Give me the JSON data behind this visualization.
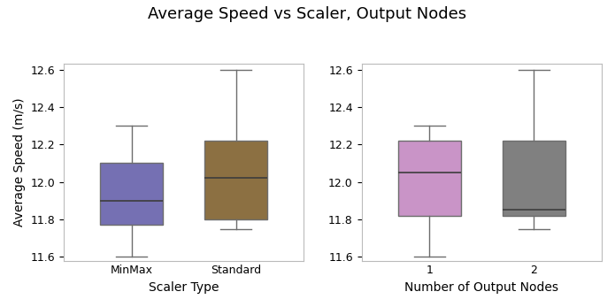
{
  "title": "Average Speed vs Scaler, Output Nodes",
  "left_plot": {
    "xlabel": "Scaler Type",
    "ylabel": "Average Speed (m/s)",
    "categories": [
      "MinMax",
      "Standard"
    ],
    "boxes": [
      {
        "whislo": 11.6,
        "q1": 11.77,
        "med": 11.9,
        "q3": 12.1,
        "whishi": 12.3,
        "color": "#7570b3"
      },
      {
        "whislo": 11.75,
        "q1": 11.8,
        "med": 12.02,
        "q3": 12.22,
        "whishi": 12.6,
        "color": "#8c7042"
      }
    ],
    "ylim": [
      11.58,
      12.63
    ]
  },
  "right_plot": {
    "xlabel": "Number of Output Nodes",
    "ylabel": "",
    "categories": [
      "1",
      "2"
    ],
    "boxes": [
      {
        "whislo": 11.6,
        "q1": 11.82,
        "med": 12.05,
        "q3": 12.22,
        "whishi": 12.3,
        "color": "#c994c7"
      },
      {
        "whislo": 11.75,
        "q1": 11.82,
        "med": 11.85,
        "q3": 12.22,
        "whishi": 12.6,
        "color": "#808080"
      }
    ],
    "ylim": [
      11.58,
      12.63
    ]
  },
  "box_linecolor": "#6d6d6d",
  "median_linecolor": "#3d3d3d",
  "whisker_linecolor": "#6d6d6d",
  "cap_linecolor": "#6d6d6d",
  "background_color": "#ffffff",
  "title_fontsize": 13,
  "label_fontsize": 10,
  "tick_fontsize": 9,
  "figsize": [
    6.95,
    3.47
  ],
  "dpi": 100
}
